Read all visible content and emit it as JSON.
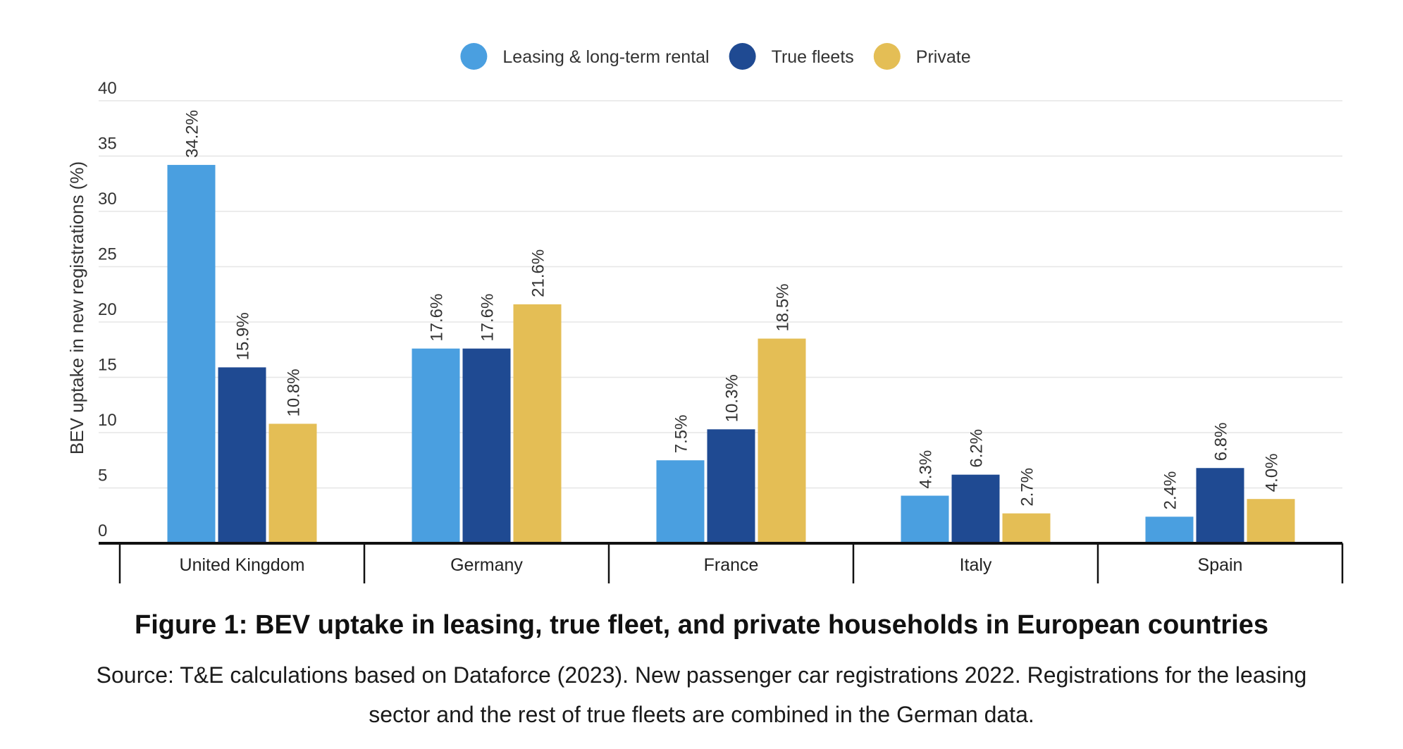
{
  "chart_data": {
    "type": "bar",
    "ylabel": "BEV uptake in new registrations (%)",
    "ylim": [
      0,
      40
    ],
    "yticks": [
      0,
      5,
      10,
      15,
      20,
      25,
      30,
      35,
      40
    ],
    "grid": true,
    "legend_position": "top-center",
    "categories": [
      "United Kingdom",
      "Germany",
      "France",
      "Italy",
      "Spain"
    ],
    "series": [
      {
        "name": "Leasing & long-term rental",
        "color": "#4A9FE0",
        "values": [
          34.2,
          17.6,
          7.5,
          4.3,
          2.4
        ],
        "labels": [
          "34.2%",
          "17.6%",
          "7.5%",
          "4.3%",
          "2.4%"
        ]
      },
      {
        "name": "True fleets",
        "color": "#1F4A92",
        "values": [
          15.9,
          17.6,
          10.3,
          6.2,
          6.8
        ],
        "labels": [
          "15.9%",
          "17.6%",
          "10.3%",
          "6.2%",
          "6.8%"
        ]
      },
      {
        "name": "Private",
        "color": "#E4BE55",
        "values": [
          10.8,
          21.6,
          18.5,
          2.7,
          4.0
        ],
        "labels": [
          "10.8%",
          "21.6%",
          "18.5%",
          "2.7%",
          "4.0%"
        ]
      }
    ]
  },
  "figure": {
    "title": "Figure 1: BEV uptake in leasing, true fleet, and private households in European countries",
    "source": "Source: T&E calculations based on Dataforce (2023). New passenger car registrations 2022. Registrations for the leasing sector and the rest of true fleets are combined in the German data."
  }
}
